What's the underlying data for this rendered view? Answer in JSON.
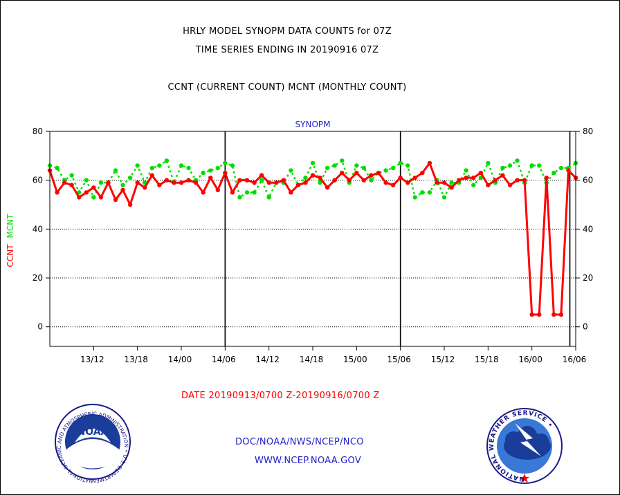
{
  "header": {
    "title": "HRLY MODEL SYNOPM DATA COUNTS for 07Z",
    "subtitle": "TIME SERIES ENDING IN 20190916 07Z",
    "legend_text": "CCNT (CURRENT COUNT) MCNT (MONTHLY COUNT)"
  },
  "footer": {
    "date_range": "DATE 20190913/0700 Z-20190916/0700 Z",
    "credit_line1": "DOC/NOAA/NWS/NCEP/NCO",
    "credit_line2": "WWW.NCEP.NOAA.GOV"
  },
  "logos": {
    "noaa_text": "NOAA",
    "noaa_ring_text": "NATIONAL OCEANIC AND ATMOSPHERIC ADMINISTRATION • U.S. DEPARTMENT OF COMMERCE •",
    "nws_ring_text": "NATIONAL WEATHER SERVICE •"
  },
  "colors": {
    "ccnt": "#ff0000",
    "mcnt": "#00dd00",
    "label_blue": "#2222cc"
  },
  "chart_data": {
    "type": "line",
    "title": "SYNOPM",
    "ylabel_left": [
      "CCNT",
      "MCNT"
    ],
    "ylim": [
      -8,
      80
    ],
    "yticks": [
      0,
      20,
      40,
      60,
      80
    ],
    "x_hours_range": [
      0,
      72
    ],
    "xticks": [
      {
        "hour": 6,
        "label": "13/12"
      },
      {
        "hour": 12,
        "label": "13/18"
      },
      {
        "hour": 18,
        "label": "14/00"
      },
      {
        "hour": 24,
        "label": "14/06"
      },
      {
        "hour": 30,
        "label": "14/12"
      },
      {
        "hour": 36,
        "label": "14/18"
      },
      {
        "hour": 42,
        "label": "15/00"
      },
      {
        "hour": 48,
        "label": "15/06"
      },
      {
        "hour": 54,
        "label": "15/12"
      },
      {
        "hour": 60,
        "label": "15/18"
      },
      {
        "hour": 66,
        "label": "16/00"
      },
      {
        "hour": 72,
        "label": "16/06"
      }
    ],
    "vertical_lines_hours": [
      24,
      48,
      71.2
    ],
    "grid": true,
    "series": [
      {
        "name": "CCNT",
        "color": "#ff0000",
        "values": [
          64,
          55,
          59,
          58,
          53,
          55,
          57,
          53,
          59,
          52,
          56,
          50,
          59,
          57,
          62,
          58,
          60,
          59,
          59,
          60,
          59,
          55,
          61,
          56,
          63,
          55,
          60,
          60,
          59,
          62,
          59,
          59,
          60,
          55,
          58,
          59,
          62,
          61,
          57,
          60,
          63,
          60,
          63,
          60,
          62,
          63,
          59,
          58,
          61,
          59,
          61,
          63,
          67,
          59,
          59,
          57,
          60,
          61,
          61,
          63,
          58,
          60,
          62,
          58,
          60,
          60,
          5,
          5,
          61,
          5,
          5,
          64,
          61
        ]
      },
      {
        "name": "MCNT",
        "color": "#00dd00",
        "values": [
          66,
          65,
          60,
          62,
          55,
          60,
          53,
          59,
          59,
          64,
          58,
          61,
          66,
          59,
          65,
          66,
          68,
          59,
          66,
          65,
          60,
          63,
          64,
          65,
          67,
          66,
          53,
          55,
          55,
          60,
          53,
          59,
          59,
          64,
          58,
          61,
          67,
          59,
          65,
          66,
          68,
          59,
          66,
          65,
          60,
          63,
          64,
          65,
          67,
          66,
          53,
          55,
          55,
          60,
          53,
          59,
          59,
          64,
          58,
          61,
          67,
          59,
          65,
          66,
          68,
          59,
          66,
          66,
          59,
          63,
          65,
          65,
          67
        ]
      }
    ]
  }
}
